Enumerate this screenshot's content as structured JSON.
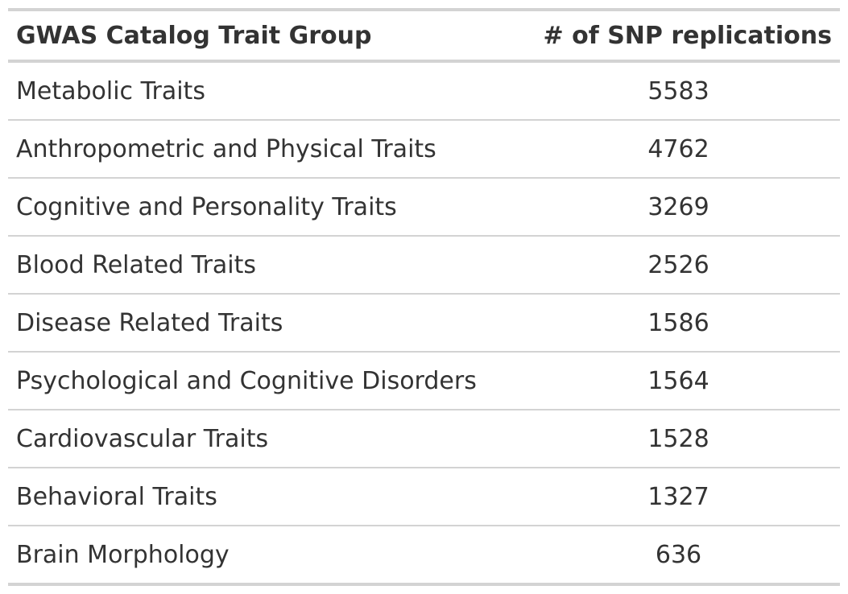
{
  "table": {
    "headers": {
      "trait_group": "GWAS Catalog Trait Group",
      "snp_replications": "# of SNP replications"
    },
    "rows": [
      {
        "trait_group": "Metabolic Traits",
        "snp_replications": "5583"
      },
      {
        "trait_group": "Anthropometric and Physical Traits",
        "snp_replications": "4762"
      },
      {
        "trait_group": "Cognitive and Personality Traits",
        "snp_replications": "3269"
      },
      {
        "trait_group": "Blood Related Traits",
        "snp_replications": "2526"
      },
      {
        "trait_group": "Disease Related Traits",
        "snp_replications": "1586"
      },
      {
        "trait_group": "Psychological and Cognitive Disorders",
        "snp_replications": "1564"
      },
      {
        "trait_group": "Cardiovascular Traits",
        "snp_replications": "1528"
      },
      {
        "trait_group": "Behavioral Traits",
        "snp_replications": "1327"
      },
      {
        "trait_group": "Brain Morphology",
        "snp_replications": "636"
      }
    ]
  },
  "colors": {
    "text": "#333333",
    "rule": "#d3d3d3",
    "background": "#ffffff"
  }
}
